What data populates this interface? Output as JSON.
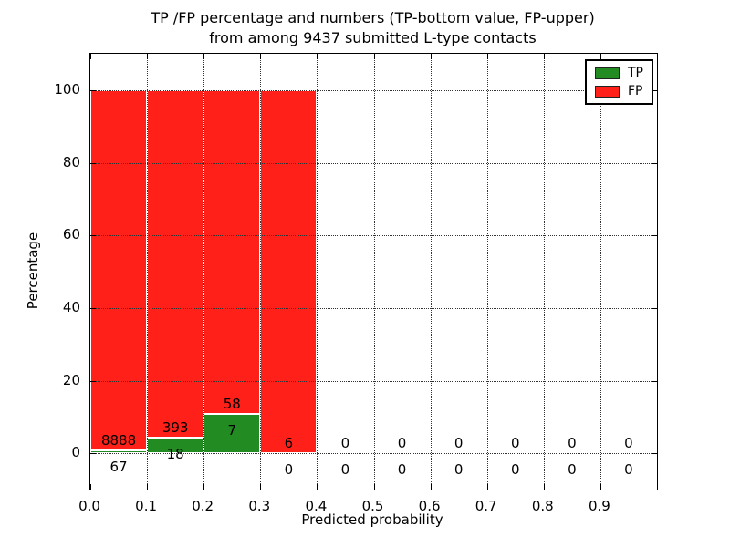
{
  "chart_data": {
    "type": "bar",
    "stacked": true,
    "title_lines": [
      "TP /FP percentage and numbers (TP-bottom value, FP-upper)",
      "from among 9437 submitted L-type contacts"
    ],
    "xlabel": "Predicted probability",
    "ylabel": "Percentage",
    "total_contacts": 9437,
    "xlim": [
      0.0,
      1.0
    ],
    "ylim": [
      -10,
      110
    ],
    "bin_width": 0.1,
    "grid": true,
    "x_ticks": {
      "values": [
        0.0,
        0.1,
        0.2,
        0.3,
        0.4,
        0.5,
        0.6,
        0.7,
        0.8,
        0.9
      ],
      "labels": [
        "0.0",
        "0.1",
        "0.2",
        "0.3",
        "0.4",
        "0.5",
        "0.6",
        "0.7",
        "0.8",
        "0.9"
      ]
    },
    "y_ticks": {
      "values": [
        0,
        20,
        40,
        60,
        80,
        100
      ],
      "labels": [
        "0",
        "20",
        "40",
        "60",
        "80",
        "100"
      ]
    },
    "series": [
      {
        "name": "TP",
        "color": "#228b22",
        "values": [
          67,
          18,
          7,
          0,
          0,
          0,
          0,
          0,
          0,
          0
        ]
      },
      {
        "name": "FP",
        "color": "#ff2019",
        "values": [
          8888,
          393,
          58,
          6,
          0,
          0,
          0,
          0,
          0,
          0
        ]
      }
    ],
    "bins": [
      {
        "range": "0.0-0.1",
        "tp": 67,
        "fp": 8888,
        "tp_pct": 0.75,
        "fp_pct": 99.25
      },
      {
        "range": "0.1-0.2",
        "tp": 18,
        "fp": 393,
        "tp_pct": 4.38,
        "fp_pct": 95.62
      },
      {
        "range": "0.2-0.3",
        "tp": 7,
        "fp": 58,
        "tp_pct": 10.77,
        "fp_pct": 89.23
      },
      {
        "range": "0.3-0.4",
        "tp": 0,
        "fp": 6,
        "tp_pct": 0,
        "fp_pct": 100
      },
      {
        "range": "0.4-0.5",
        "tp": 0,
        "fp": 0,
        "tp_pct": 0,
        "fp_pct": 0
      },
      {
        "range": "0.5-0.6",
        "tp": 0,
        "fp": 0,
        "tp_pct": 0,
        "fp_pct": 0
      },
      {
        "range": "0.6-0.7",
        "tp": 0,
        "fp": 0,
        "tp_pct": 0,
        "fp_pct": 0
      },
      {
        "range": "0.7-0.8",
        "tp": 0,
        "fp": 0,
        "tp_pct": 0,
        "fp_pct": 0
      },
      {
        "range": "0.8-0.9",
        "tp": 0,
        "fp": 0,
        "tp_pct": 0,
        "fp_pct": 0
      },
      {
        "range": "0.9-1.0",
        "tp": 0,
        "fp": 0,
        "tp_pct": 0,
        "fp_pct": 0
      }
    ],
    "label_offsets_pct": {
      "fp_label": 2.75,
      "tp_label": -4.5
    },
    "legend": {
      "position": "upper right",
      "entries": [
        {
          "label": "TP",
          "color": "#228b22"
        },
        {
          "label": "FP",
          "color": "#ff2019"
        }
      ]
    }
  }
}
